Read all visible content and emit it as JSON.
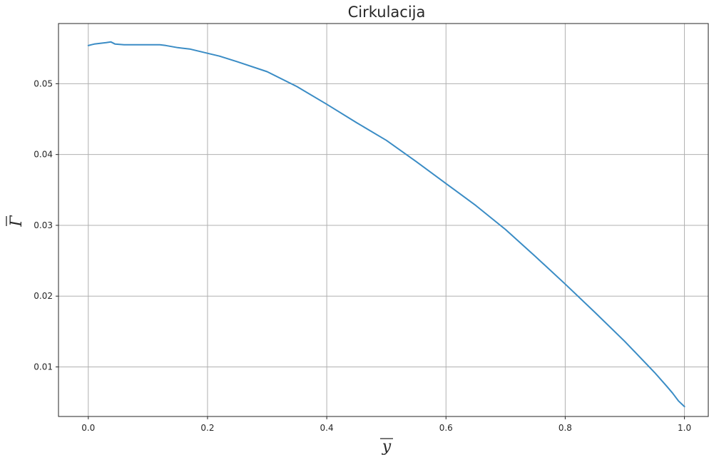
{
  "chart_data": {
    "type": "line",
    "title": "Cirkulacija",
    "xlabel": "y",
    "ylabel": "Γ",
    "xlabel_overline": true,
    "ylabel_overline": true,
    "xlim": [
      -0.05,
      1.04
    ],
    "ylim": [
      0.003,
      0.0585
    ],
    "grid": true,
    "xticks": [
      0.0,
      0.2,
      0.4,
      0.6,
      0.8,
      1.0
    ],
    "xtick_labels": [
      "0.0",
      "0.2",
      "0.4",
      "0.6",
      "0.8",
      "1.0"
    ],
    "yticks": [
      0.01,
      0.02,
      0.03,
      0.04,
      0.05
    ],
    "ytick_labels": [
      "0.01",
      "0.02",
      "0.03",
      "0.04",
      "0.05"
    ],
    "series": [
      {
        "color": "#3a8cc5",
        "x": [
          0.0,
          0.01,
          0.02,
          0.03,
          0.038,
          0.045,
          0.06,
          0.08,
          0.1,
          0.12,
          0.13,
          0.15,
          0.17,
          0.2,
          0.22,
          0.25,
          0.3,
          0.35,
          0.4,
          0.45,
          0.5,
          0.55,
          0.6,
          0.65,
          0.7,
          0.75,
          0.8,
          0.85,
          0.9,
          0.95,
          0.97,
          0.98,
          0.99,
          1.0
        ],
        "y": [
          0.0554,
          0.0556,
          0.0557,
          0.0558,
          0.0559,
          0.0556,
          0.0555,
          0.0555,
          0.0555,
          0.0555,
          0.0554,
          0.0551,
          0.0549,
          0.0543,
          0.0539,
          0.0531,
          0.0517,
          0.0496,
          0.0471,
          0.0445,
          0.042,
          0.039,
          0.0359,
          0.0328,
          0.0294,
          0.0256,
          0.0217,
          0.0177,
          0.0136,
          0.0092,
          0.0073,
          0.0063,
          0.0052,
          0.0044
        ]
      }
    ]
  }
}
